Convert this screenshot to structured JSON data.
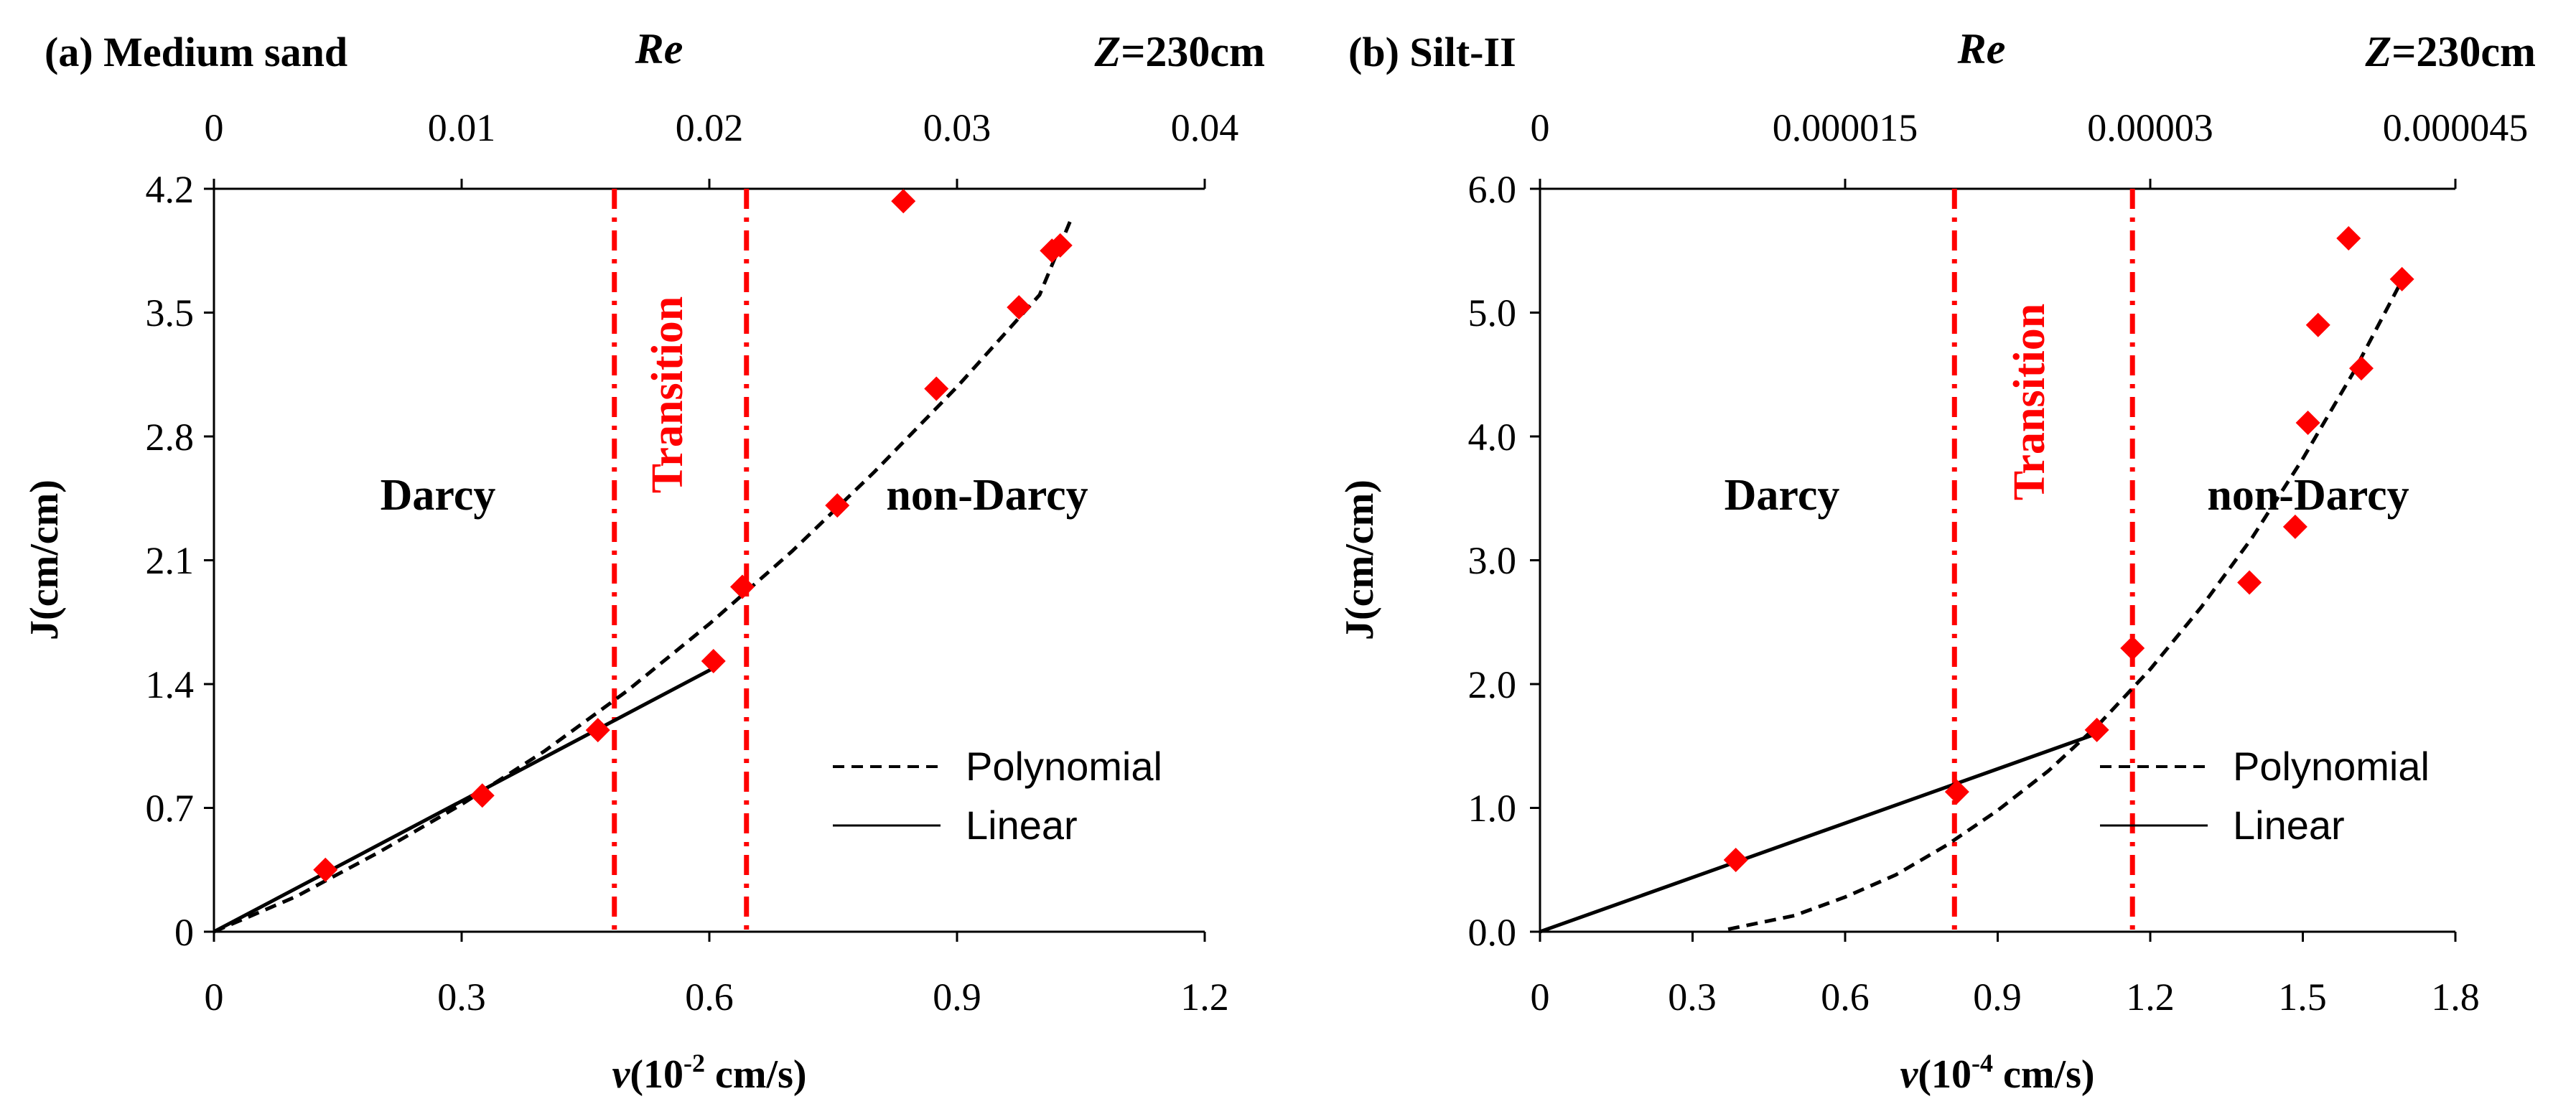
{
  "colors": {
    "marker": "#ff0000",
    "boundary": "#ff0000",
    "curve": "#000000"
  },
  "chart_data": [
    {
      "type": "scatter",
      "panel_label": "(a) Medium sand",
      "top_axis_label": "Re",
      "z_prefix": "Z",
      "z_value": "=230cm",
      "xlabel": "v(10",
      "xlabel_exp": "-2",
      "xlabel_tail": " cm/s)",
      "ylabel": "J(cm/cm)",
      "xlim": [
        0,
        1.2
      ],
      "ylim": [
        0,
        4.2
      ],
      "re_lim": [
        0,
        0.04
      ],
      "x_ticks": [
        "0",
        "0.3",
        "0.6",
        "0.9",
        "1.2"
      ],
      "y_ticks": [
        "0",
        "0.7",
        "1.4",
        "2.1",
        "2.8",
        "3.5",
        "4.2"
      ],
      "re_ticks": [
        "0",
        "0.01",
        "0.02",
        "0.03",
        "0.04"
      ],
      "data_points": {
        "x": [
          0.135,
          0.325,
          0.465,
          0.605,
          0.64,
          0.755,
          0.835,
          0.875,
          0.975,
          1.015,
          1.025
        ],
        "y": [
          0.35,
          0.77,
          1.14,
          1.53,
          1.95,
          2.41,
          4.13,
          3.07,
          3.53,
          3.85,
          3.88
        ]
      },
      "polynomial": {
        "x": [
          0,
          0.1,
          0.2,
          0.3,
          0.4,
          0.5,
          0.6,
          0.7,
          0.8,
          0.9,
          1.0,
          1.04
        ],
        "y": [
          0,
          0.2,
          0.45,
          0.72,
          1.02,
          1.36,
          1.74,
          2.15,
          2.6,
          3.08,
          3.6,
          4.05
        ]
      },
      "linear": {
        "x": [
          0,
          0.605
        ],
        "y": [
          0,
          1.49
        ]
      },
      "boundaries": [
        0.485,
        0.645
      ],
      "regions": {
        "darcy": "Darcy",
        "transition": "Transition",
        "non_darcy": "non-Darcy"
      },
      "legend": [
        "Polynomial",
        "Linear"
      ]
    },
    {
      "type": "scatter",
      "panel_label": "(b) Silt-II",
      "top_axis_label": "Re",
      "z_prefix": "Z",
      "z_value": "=230cm",
      "xlabel": "v(10",
      "xlabel_exp": "-4",
      "xlabel_tail": " cm/s)",
      "ylabel": "J(cm/cm)",
      "xlim": [
        0,
        1.8
      ],
      "ylim": [
        0,
        6.0
      ],
      "re_lim": [
        0,
        4.5e-05
      ],
      "x_ticks": [
        "0",
        "0.3",
        "0.6",
        "0.9",
        "1.2",
        "1.5",
        "1.8"
      ],
      "y_ticks": [
        "0.0",
        "1.0",
        "2.0",
        "3.0",
        "4.0",
        "5.0",
        "6.0"
      ],
      "re_ticks": [
        "0",
        "0.000015",
        "0.00003",
        "0.000045"
      ],
      "data_points": {
        "x": [
          0.385,
          0.82,
          1.095,
          1.165,
          1.395,
          1.485,
          1.51,
          1.53,
          1.59,
          1.615,
          1.695
        ],
        "y": [
          0.58,
          1.13,
          1.63,
          2.29,
          2.82,
          3.27,
          4.11,
          4.9,
          5.6,
          4.55,
          5.27
        ]
      },
      "polynomial": {
        "x": [
          0.37,
          0.5,
          0.6,
          0.7,
          0.8,
          0.9,
          1.0,
          1.1,
          1.2,
          1.3,
          1.4,
          1.5,
          1.6,
          1.7
        ],
        "y": [
          0.02,
          0.13,
          0.28,
          0.46,
          0.7,
          0.98,
          1.3,
          1.68,
          2.12,
          2.62,
          3.18,
          3.82,
          4.52,
          5.3
        ]
      },
      "linear": {
        "x": [
          0,
          1.095
        ],
        "y": [
          0,
          1.6
        ]
      },
      "boundaries": [
        0.815,
        1.165
      ],
      "regions": {
        "darcy": "Darcy",
        "transition": "Transition",
        "non_darcy": "non-Darcy"
      },
      "legend": [
        "Polynomial",
        "Linear"
      ]
    }
  ]
}
